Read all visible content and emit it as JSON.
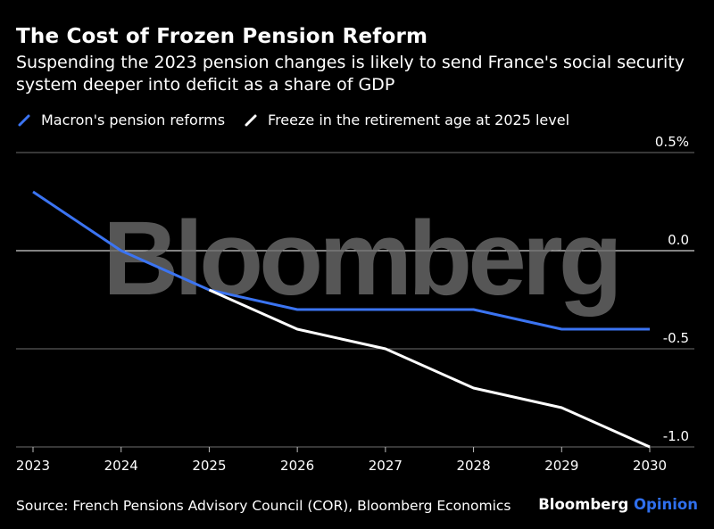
{
  "title": "The Cost of Frozen Pension Reform",
  "subtitle": "Suspending the 2023 pension changes is likely to send France's social security system deeper into deficit as a share of GDP",
  "watermark": "Bloomberg",
  "source": "Source: French Pensions Advisory Council (COR), Bloomberg Economics",
  "brand": {
    "name": "Bloomberg",
    "suffix": "Opinion"
  },
  "colors": {
    "background": "#000000",
    "macron": "#3b74f2",
    "freeze": "#ffffff",
    "grid": "#7a7a7a",
    "opinion": "#2f6fed"
  },
  "chart_data": {
    "type": "line",
    "x": [
      2023,
      2024,
      2025,
      2026,
      2027,
      2028,
      2029,
      2030
    ],
    "x_tick_labels": [
      "2023",
      "2024",
      "2025",
      "2026",
      "2027",
      "2028",
      "2029",
      "2030"
    ],
    "series": [
      {
        "name": "Macron's pension reforms",
        "color": "#3b74f2",
        "x": [
          2023,
          2024,
          2025,
          2026,
          2027,
          2028,
          2029,
          2030
        ],
        "values": [
          0.3,
          0.0,
          -0.2,
          -0.3,
          -0.3,
          -0.3,
          -0.4,
          -0.4
        ]
      },
      {
        "name": "Freeze in the retirement age at 2025 level",
        "color": "#ffffff",
        "x": [
          2025,
          2026,
          2027,
          2028,
          2029,
          2030
        ],
        "values": [
          -0.2,
          -0.4,
          -0.5,
          -0.7,
          -0.8,
          -1.0
        ]
      }
    ],
    "y_ticks": [
      0.5,
      0.0,
      -0.5,
      -1.0
    ],
    "y_tick_labels": [
      "0.5%",
      "0.0",
      "-0.5",
      "-1.0"
    ],
    "ylim": [
      -1.0,
      0.5
    ],
    "xlim": [
      2023,
      2030
    ],
    "grid": true,
    "legend": "top-left",
    "y_axis_side": "right"
  }
}
